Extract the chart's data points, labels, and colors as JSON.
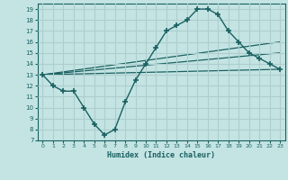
{
  "xlabel": "Humidex (Indice chaleur)",
  "bg_color": "#c4e4e4",
  "grid_color": "#aecece",
  "line_color": "#1a6060",
  "xlim": [
    -0.5,
    23.5
  ],
  "ylim": [
    7,
    19.5
  ],
  "yticks": [
    7,
    8,
    9,
    10,
    11,
    12,
    13,
    14,
    15,
    16,
    17,
    18,
    19
  ],
  "xticks": [
    0,
    1,
    2,
    3,
    4,
    5,
    6,
    7,
    8,
    9,
    10,
    11,
    12,
    13,
    14,
    15,
    16,
    17,
    18,
    19,
    20,
    21,
    22,
    23
  ],
  "curve_x": [
    0,
    1,
    2,
    3,
    4,
    5,
    6,
    7,
    8,
    9,
    10,
    11,
    12,
    13,
    14,
    15,
    16,
    17,
    18,
    19,
    20,
    21,
    22,
    23
  ],
  "curve_y": [
    13,
    12,
    11.5,
    11.5,
    10,
    8.5,
    7.5,
    8,
    10.5,
    12.5,
    14,
    15.5,
    17,
    17.5,
    18,
    19,
    19,
    18.5,
    17,
    16,
    15,
    14.5,
    14,
    13.5
  ],
  "line1_x": [
    0,
    23
  ],
  "line1_y": [
    13,
    13.5
  ],
  "line2_x": [
    0,
    23
  ],
  "line2_y": [
    13,
    15.0
  ],
  "line3_x": [
    0,
    23
  ],
  "line3_y": [
    13,
    16.0
  ]
}
